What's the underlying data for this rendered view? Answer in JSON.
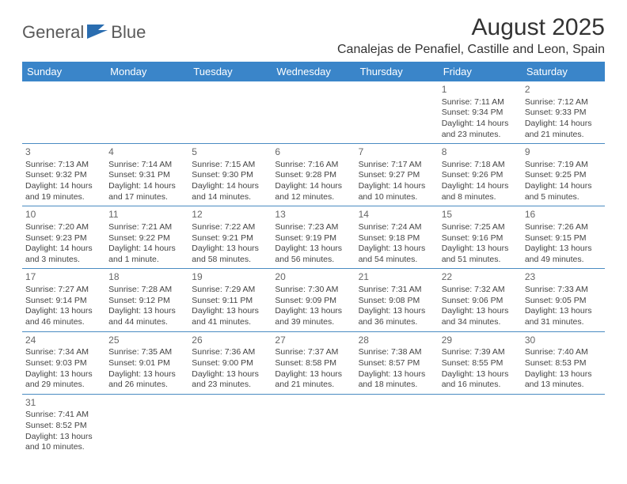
{
  "logo": {
    "text1": "General",
    "text2": "Blue"
  },
  "title": "August 2025",
  "location": "Canalejas de Penafiel, Castille and Leon, Spain",
  "colors": {
    "header_bg": "#3a85c9",
    "header_text": "#ffffff",
    "border": "#4a8bc2",
    "text": "#444444",
    "daynum": "#666666",
    "logo_gray": "#5a5a5a",
    "logo_blue": "#2a6db0"
  },
  "weekdays": [
    "Sunday",
    "Monday",
    "Tuesday",
    "Wednesday",
    "Thursday",
    "Friday",
    "Saturday"
  ],
  "weeks": [
    [
      null,
      null,
      null,
      null,
      null,
      {
        "n": "1",
        "sr": "Sunrise: 7:11 AM",
        "ss": "Sunset: 9:34 PM",
        "dl1": "Daylight: 14 hours",
        "dl2": "and 23 minutes."
      },
      {
        "n": "2",
        "sr": "Sunrise: 7:12 AM",
        "ss": "Sunset: 9:33 PM",
        "dl1": "Daylight: 14 hours",
        "dl2": "and 21 minutes."
      }
    ],
    [
      {
        "n": "3",
        "sr": "Sunrise: 7:13 AM",
        "ss": "Sunset: 9:32 PM",
        "dl1": "Daylight: 14 hours",
        "dl2": "and 19 minutes."
      },
      {
        "n": "4",
        "sr": "Sunrise: 7:14 AM",
        "ss": "Sunset: 9:31 PM",
        "dl1": "Daylight: 14 hours",
        "dl2": "and 17 minutes."
      },
      {
        "n": "5",
        "sr": "Sunrise: 7:15 AM",
        "ss": "Sunset: 9:30 PM",
        "dl1": "Daylight: 14 hours",
        "dl2": "and 14 minutes."
      },
      {
        "n": "6",
        "sr": "Sunrise: 7:16 AM",
        "ss": "Sunset: 9:28 PM",
        "dl1": "Daylight: 14 hours",
        "dl2": "and 12 minutes."
      },
      {
        "n": "7",
        "sr": "Sunrise: 7:17 AM",
        "ss": "Sunset: 9:27 PM",
        "dl1": "Daylight: 14 hours",
        "dl2": "and 10 minutes."
      },
      {
        "n": "8",
        "sr": "Sunrise: 7:18 AM",
        "ss": "Sunset: 9:26 PM",
        "dl1": "Daylight: 14 hours",
        "dl2": "and 8 minutes."
      },
      {
        "n": "9",
        "sr": "Sunrise: 7:19 AM",
        "ss": "Sunset: 9:25 PM",
        "dl1": "Daylight: 14 hours",
        "dl2": "and 5 minutes."
      }
    ],
    [
      {
        "n": "10",
        "sr": "Sunrise: 7:20 AM",
        "ss": "Sunset: 9:23 PM",
        "dl1": "Daylight: 14 hours",
        "dl2": "and 3 minutes."
      },
      {
        "n": "11",
        "sr": "Sunrise: 7:21 AM",
        "ss": "Sunset: 9:22 PM",
        "dl1": "Daylight: 14 hours",
        "dl2": "and 1 minute."
      },
      {
        "n": "12",
        "sr": "Sunrise: 7:22 AM",
        "ss": "Sunset: 9:21 PM",
        "dl1": "Daylight: 13 hours",
        "dl2": "and 58 minutes."
      },
      {
        "n": "13",
        "sr": "Sunrise: 7:23 AM",
        "ss": "Sunset: 9:19 PM",
        "dl1": "Daylight: 13 hours",
        "dl2": "and 56 minutes."
      },
      {
        "n": "14",
        "sr": "Sunrise: 7:24 AM",
        "ss": "Sunset: 9:18 PM",
        "dl1": "Daylight: 13 hours",
        "dl2": "and 54 minutes."
      },
      {
        "n": "15",
        "sr": "Sunrise: 7:25 AM",
        "ss": "Sunset: 9:16 PM",
        "dl1": "Daylight: 13 hours",
        "dl2": "and 51 minutes."
      },
      {
        "n": "16",
        "sr": "Sunrise: 7:26 AM",
        "ss": "Sunset: 9:15 PM",
        "dl1": "Daylight: 13 hours",
        "dl2": "and 49 minutes."
      }
    ],
    [
      {
        "n": "17",
        "sr": "Sunrise: 7:27 AM",
        "ss": "Sunset: 9:14 PM",
        "dl1": "Daylight: 13 hours",
        "dl2": "and 46 minutes."
      },
      {
        "n": "18",
        "sr": "Sunrise: 7:28 AM",
        "ss": "Sunset: 9:12 PM",
        "dl1": "Daylight: 13 hours",
        "dl2": "and 44 minutes."
      },
      {
        "n": "19",
        "sr": "Sunrise: 7:29 AM",
        "ss": "Sunset: 9:11 PM",
        "dl1": "Daylight: 13 hours",
        "dl2": "and 41 minutes."
      },
      {
        "n": "20",
        "sr": "Sunrise: 7:30 AM",
        "ss": "Sunset: 9:09 PM",
        "dl1": "Daylight: 13 hours",
        "dl2": "and 39 minutes."
      },
      {
        "n": "21",
        "sr": "Sunrise: 7:31 AM",
        "ss": "Sunset: 9:08 PM",
        "dl1": "Daylight: 13 hours",
        "dl2": "and 36 minutes."
      },
      {
        "n": "22",
        "sr": "Sunrise: 7:32 AM",
        "ss": "Sunset: 9:06 PM",
        "dl1": "Daylight: 13 hours",
        "dl2": "and 34 minutes."
      },
      {
        "n": "23",
        "sr": "Sunrise: 7:33 AM",
        "ss": "Sunset: 9:05 PM",
        "dl1": "Daylight: 13 hours",
        "dl2": "and 31 minutes."
      }
    ],
    [
      {
        "n": "24",
        "sr": "Sunrise: 7:34 AM",
        "ss": "Sunset: 9:03 PM",
        "dl1": "Daylight: 13 hours",
        "dl2": "and 29 minutes."
      },
      {
        "n": "25",
        "sr": "Sunrise: 7:35 AM",
        "ss": "Sunset: 9:01 PM",
        "dl1": "Daylight: 13 hours",
        "dl2": "and 26 minutes."
      },
      {
        "n": "26",
        "sr": "Sunrise: 7:36 AM",
        "ss": "Sunset: 9:00 PM",
        "dl1": "Daylight: 13 hours",
        "dl2": "and 23 minutes."
      },
      {
        "n": "27",
        "sr": "Sunrise: 7:37 AM",
        "ss": "Sunset: 8:58 PM",
        "dl1": "Daylight: 13 hours",
        "dl2": "and 21 minutes."
      },
      {
        "n": "28",
        "sr": "Sunrise: 7:38 AM",
        "ss": "Sunset: 8:57 PM",
        "dl1": "Daylight: 13 hours",
        "dl2": "and 18 minutes."
      },
      {
        "n": "29",
        "sr": "Sunrise: 7:39 AM",
        "ss": "Sunset: 8:55 PM",
        "dl1": "Daylight: 13 hours",
        "dl2": "and 16 minutes."
      },
      {
        "n": "30",
        "sr": "Sunrise: 7:40 AM",
        "ss": "Sunset: 8:53 PM",
        "dl1": "Daylight: 13 hours",
        "dl2": "and 13 minutes."
      }
    ],
    [
      {
        "n": "31",
        "sr": "Sunrise: 7:41 AM",
        "ss": "Sunset: 8:52 PM",
        "dl1": "Daylight: 13 hours",
        "dl2": "and 10 minutes."
      },
      null,
      null,
      null,
      null,
      null,
      null
    ]
  ]
}
